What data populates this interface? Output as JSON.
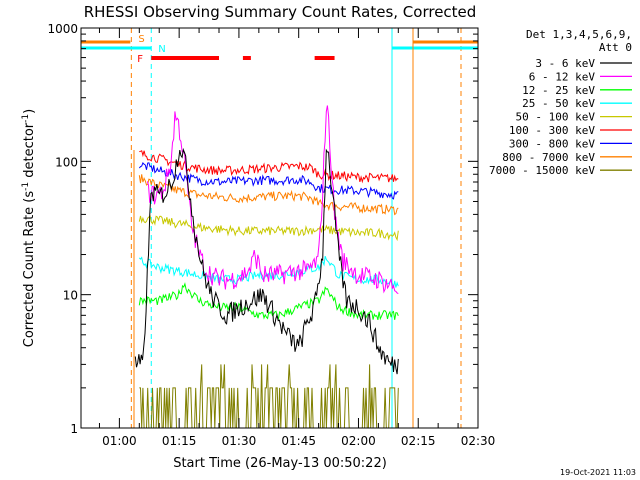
{
  "chart_data": {
    "type": "line",
    "title": "RHESSI Observing Summary Count Rates, Corrected",
    "xlabel": "Start Time (26-May-13 00:50:22)",
    "ylabel": "Corrected Count Rate (s⁻¹ detector⁻¹)",
    "ylabel_parts": {
      "main": "Corrected Count Rate (s",
      "exp1": "-1",
      "mid": " detector",
      "exp2": "-1",
      "end": ")"
    },
    "yscale": "log",
    "ylim": [
      1,
      1000
    ],
    "xlim": [
      "00:50:22",
      "02:30:00"
    ],
    "x_tick_labels": [
      "01:00",
      "01:15",
      "01:30",
      "01:45",
      "02:00",
      "02:15",
      "02:30"
    ],
    "y_tick_labels": [
      "1",
      "10",
      "100",
      "1000"
    ],
    "legend": {
      "placement": "right",
      "header": [
        "Det 1,3,4,5,6,9,",
        "Att 0"
      ]
    },
    "series": [
      {
        "name": "3 - 6 keV",
        "color": "#000000",
        "x": [
          "01:04",
          "01:06",
          "01:08",
          "01:10",
          "01:12",
          "01:14",
          "01:15",
          "01:16",
          "01:17",
          "01:19",
          "01:21",
          "01:23",
          "01:25",
          "01:27",
          "01:30",
          "01:33",
          "01:36",
          "01:39",
          "01:42",
          "01:45",
          "01:47",
          "01:49",
          "01:51",
          "01:52",
          "01:53",
          "01:55",
          "01:57",
          "02:00",
          "02:03",
          "02:05",
          "02:08",
          "02:10"
        ],
        "values": [
          3,
          3,
          60,
          55,
          60,
          85,
          130,
          120,
          80,
          30,
          15,
          10,
          8,
          7,
          8,
          9,
          10,
          7,
          5,
          4,
          6,
          8,
          20,
          150,
          80,
          20,
          9,
          8,
          6,
          4,
          3,
          3
        ]
      },
      {
        "name": "6 - 12 keV",
        "color": "#ff00ff",
        "x": [
          "01:07",
          "01:09",
          "01:11",
          "01:13",
          "01:14",
          "01:15",
          "01:16",
          "01:17",
          "01:18",
          "01:20",
          "01:22",
          "01:25",
          "01:28",
          "01:31",
          "01:33",
          "01:34",
          "01:36",
          "01:40",
          "01:44",
          "01:47",
          "01:50",
          "01:51",
          "01:52",
          "01:53",
          "01:54",
          "01:56",
          "02:00",
          "02:05",
          "02:10"
        ],
        "values": [
          60,
          55,
          60,
          100,
          230,
          180,
          120,
          70,
          35,
          20,
          15,
          13,
          13,
          14,
          16,
          20,
          14,
          14,
          15,
          15,
          18,
          60,
          300,
          120,
          40,
          18,
          14,
          13,
          11
        ]
      },
      {
        "name": "12 - 25 keV",
        "color": "#00ff00",
        "x": [
          "01:05",
          "01:10",
          "01:15",
          "01:16",
          "01:20",
          "01:25",
          "01:30",
          "01:35",
          "01:40",
          "01:45",
          "01:50",
          "01:52",
          "01:55",
          "02:00",
          "02:05",
          "02:10"
        ],
        "values": [
          9,
          9,
          10,
          12,
          9,
          8,
          8,
          7,
          7,
          8,
          9,
          11,
          8,
          7,
          7,
          7
        ]
      },
      {
        "name": "25 - 50 keV",
        "color": "#00ffff",
        "x": [
          "01:05",
          "01:10",
          "01:15",
          "01:20",
          "01:25",
          "01:30",
          "01:35",
          "01:40",
          "01:45",
          "01:50",
          "01:52",
          "01:55",
          "02:00",
          "02:05",
          "02:10"
        ],
        "values": [
          18,
          16,
          15,
          14,
          13,
          13,
          14,
          14,
          15,
          16,
          19,
          14,
          13,
          13,
          12
        ]
      },
      {
        "name": "50 - 100 keV",
        "color": "#c8c800",
        "x": [
          "01:05",
          "01:10",
          "01:15",
          "01:20",
          "01:25",
          "01:30",
          "01:35",
          "01:40",
          "01:45",
          "01:50",
          "01:55",
          "02:00",
          "02:05",
          "02:10"
        ],
        "values": [
          38,
          36,
          34,
          32,
          31,
          30,
          30,
          30,
          30,
          31,
          30,
          29,
          29,
          28
        ]
      },
      {
        "name": "100 - 300 keV",
        "color": "#ff0000",
        "x": [
          "01:05",
          "01:10",
          "01:15",
          "01:20",
          "01:25",
          "01:30",
          "01:35",
          "01:40",
          "01:45",
          "01:48",
          "01:50",
          "01:55",
          "02:00",
          "02:05",
          "02:10"
        ],
        "values": [
          115,
          105,
          95,
          88,
          85,
          86,
          88,
          90,
          92,
          90,
          80,
          78,
          76,
          75,
          74
        ]
      },
      {
        "name": "300 - 800 keV",
        "color": "#0000ff",
        "x": [
          "01:05",
          "01:10",
          "01:15",
          "01:20",
          "01:25",
          "01:30",
          "01:35",
          "01:40",
          "01:45",
          "01:48",
          "01:50",
          "01:55",
          "02:00",
          "02:05",
          "02:10"
        ],
        "values": [
          95,
          85,
          78,
          72,
          70,
          71,
          72,
          72,
          73,
          70,
          63,
          61,
          60,
          58,
          56
        ]
      },
      {
        "name": "800 - 7000 keV",
        "color": "#ff8000",
        "x": [
          "01:05",
          "01:10",
          "01:15",
          "01:20",
          "01:25",
          "01:30",
          "01:35",
          "01:40",
          "01:45",
          "01:48",
          "01:50",
          "01:55",
          "02:00",
          "02:05",
          "02:10"
        ],
        "values": [
          75,
          66,
          60,
          56,
          54,
          53,
          54,
          55,
          55,
          53,
          48,
          46,
          45,
          44,
          43
        ]
      },
      {
        "name": "7000 - 15000 keV",
        "color": "#808000",
        "x": [
          "01:05",
          "01:10",
          "01:15",
          "01:20",
          "01:25",
          "01:30",
          "01:35",
          "01:40",
          "01:45",
          "01:50",
          "01:55",
          "02:00",
          "02:05",
          "02:10"
        ],
        "values": [
          2,
          2,
          2,
          2,
          2,
          2,
          2,
          2,
          3,
          2,
          2,
          2,
          2,
          2
        ]
      }
    ],
    "annotations": [
      {
        "label": "S",
        "color": "#ff8000",
        "x": "01:03"
      },
      {
        "label": "N",
        "color": "#00ffff",
        "x": "01:08"
      },
      {
        "label": "F",
        "color": "#ff0000",
        "x": "01:07"
      }
    ],
    "flare_intervals": [
      {
        "start": "01:08",
        "end": "01:25"
      },
      {
        "start": "01:31",
        "end": "01:33"
      },
      {
        "start": "01:49",
        "end": "01:54"
      }
    ],
    "timestamp": "19-Oct-2021 11:03"
  }
}
